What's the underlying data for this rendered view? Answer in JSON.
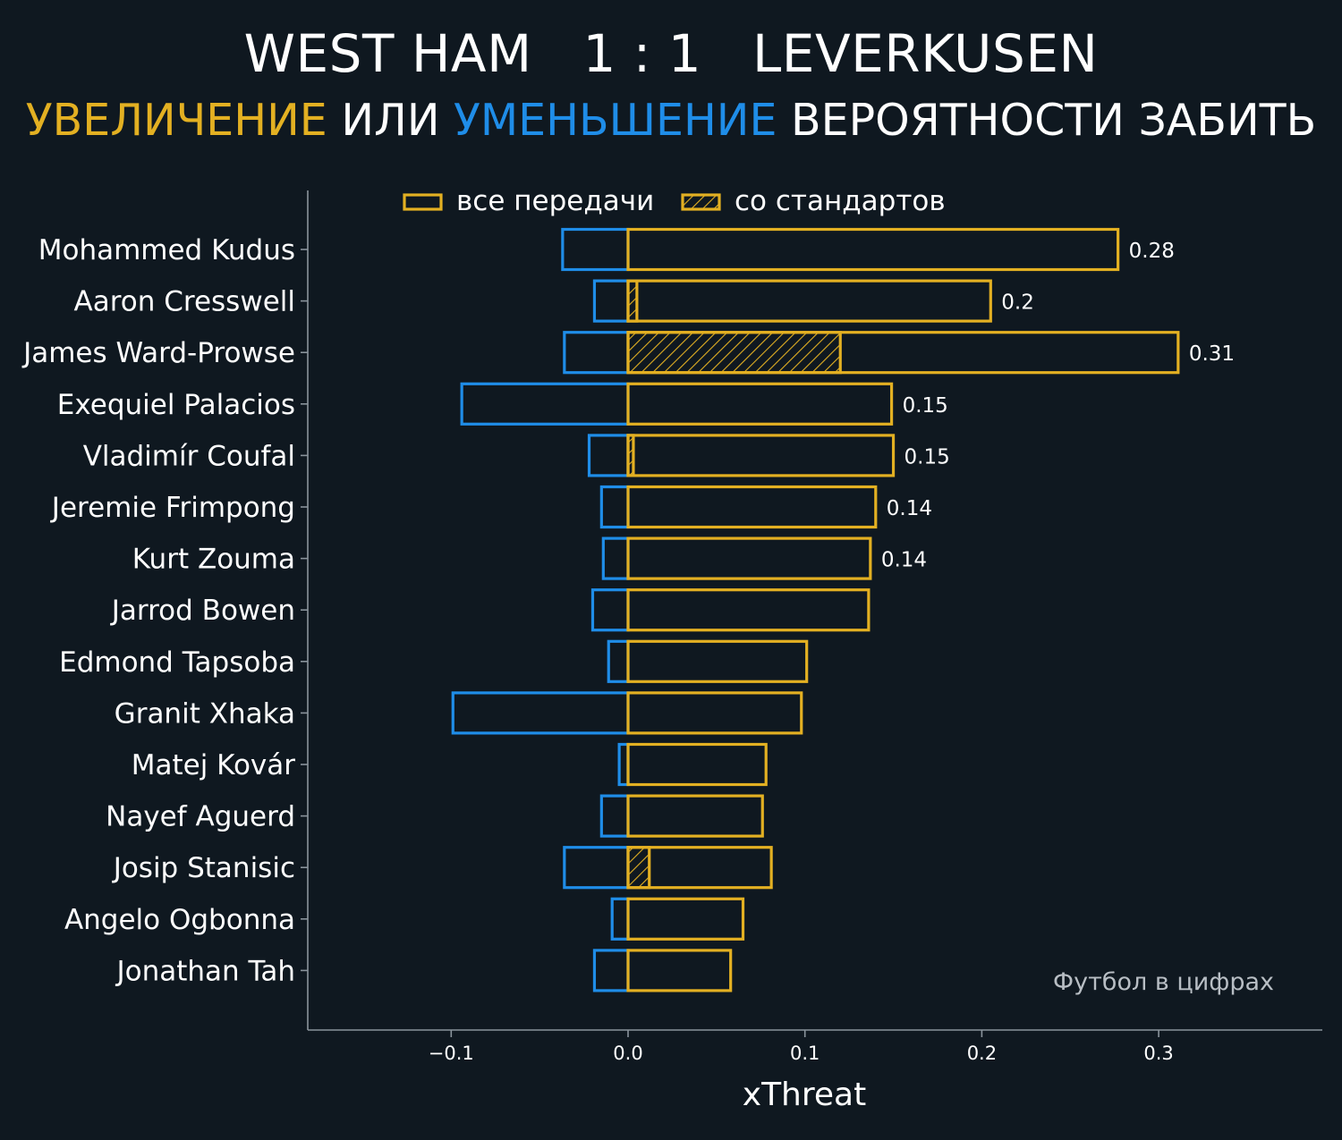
{
  "header": {
    "match_title": "WEST HAM   1 : 1   LEVERKUSEN",
    "subtitle_increase": "УВЕЛИЧЕНИЕ",
    "subtitle_or": "ИЛИ",
    "subtitle_decrease": "УМЕНЬШЕНИЕ",
    "subtitle_rest": "ВЕРОЯТНОСТИ ЗАБИТЬ"
  },
  "watermark": "Футбол в цифрах",
  "colors": {
    "background": "#0f1820",
    "increase": "#e3b022",
    "decrease": "#1f8de8",
    "axis": "#8a949c"
  },
  "chart_data": {
    "type": "bar",
    "orientation": "horizontal",
    "xlabel": "xThreat",
    "xlim": [
      -0.18,
      0.39
    ],
    "xticks": [
      -0.1,
      0.0,
      0.1,
      0.2,
      0.3
    ],
    "xtick_labels": [
      "−0.1",
      "0.0",
      "0.1",
      "0.2",
      "0.3"
    ],
    "legend": {
      "placement": "top",
      "entries": [
        "все передачи",
        "со стандартов"
      ]
    },
    "categories": [
      "Mohammed Kudus",
      "Aaron Cresswell",
      "James Ward-Prowse",
      "Exequiel Palacios",
      "Vladimír Coufal",
      "Jeremie Frimpong",
      "Kurt Zouma",
      "Jarrod Bowen",
      "Edmond Tapsoba",
      "Granit Xhaka",
      "Matej Kovár",
      "Nayef Aguerd",
      "Josip Stanisic",
      "Angelo Ogbonna",
      "Jonathan Tah"
    ],
    "series": [
      {
        "name": "все передачи",
        "values": [
          0.277,
          0.205,
          0.311,
          0.149,
          0.15,
          0.14,
          0.137,
          0.136,
          0.101,
          0.098,
          0.078,
          0.076,
          0.081,
          0.065,
          0.058
        ]
      },
      {
        "name": "со стандартов",
        "values": [
          0,
          0.005,
          0.12,
          0,
          0.003,
          0,
          0,
          0,
          0,
          0,
          0,
          0,
          0.012,
          0,
          0
        ]
      },
      {
        "values": [
          -0.037,
          -0.019,
          -0.036,
          -0.094,
          -0.022,
          -0.015,
          -0.014,
          -0.02,
          -0.011,
          -0.099,
          -0.005,
          -0.015,
          -0.036,
          -0.009,
          -0.019
        ]
      }
    ],
    "value_labels": [
      "0.28",
      "0.2",
      "0.31",
      "0.15",
      "0.15",
      "0.14",
      "0.14",
      "",
      "",
      "",
      "",
      "",
      "",
      "",
      ""
    ]
  }
}
